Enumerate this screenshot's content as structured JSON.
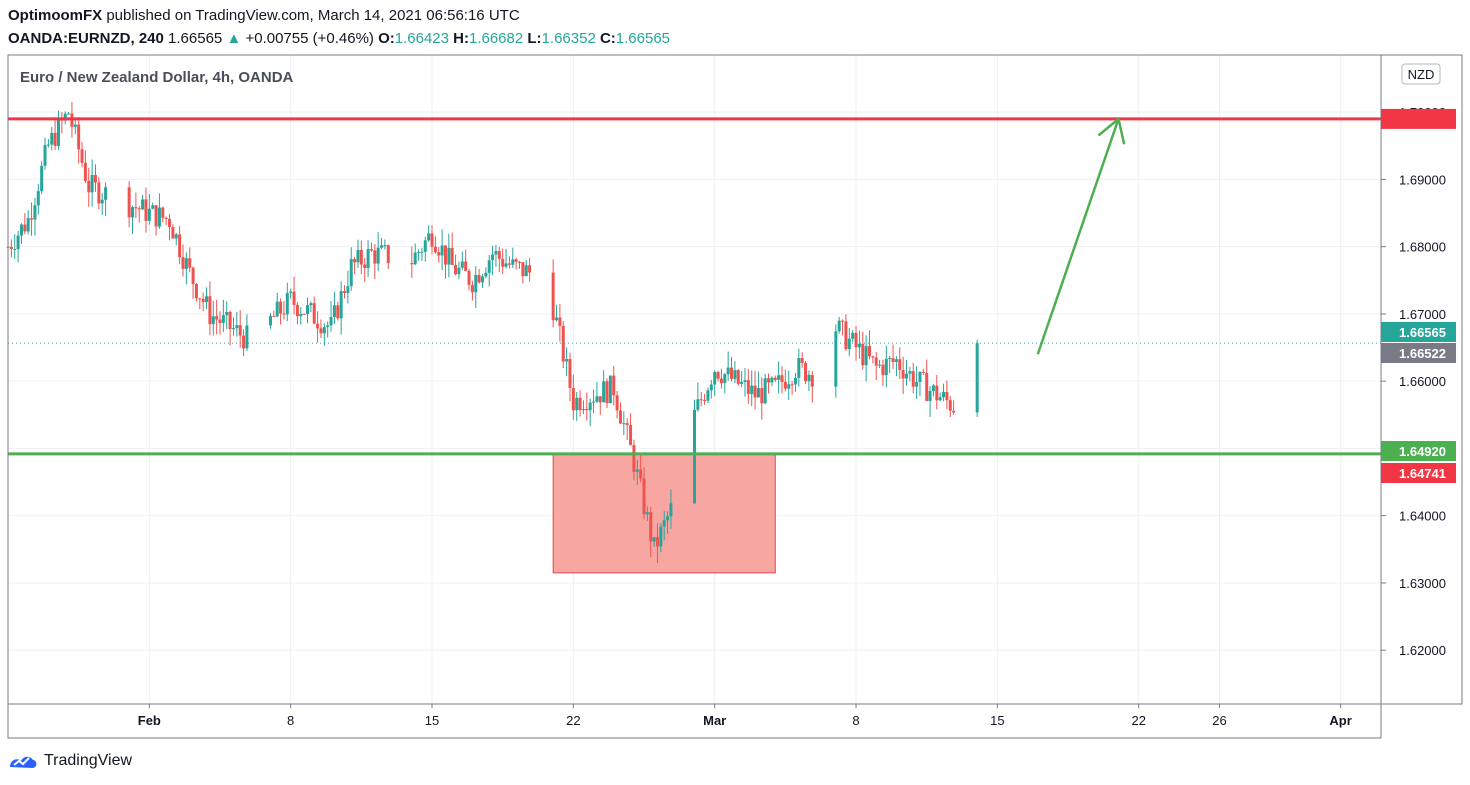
{
  "header": {
    "author": "OptimoomFX",
    "published": "published on TradingView.com, March 14, 2021 06:56:16 UTC",
    "symbol": "OANDA:EURNZD, 240",
    "last": "1.66565",
    "change": "+0.00755 (+0.46%)",
    "o_label": "O:",
    "o": "1.66423",
    "h_label": "H:",
    "h": "1.66682",
    "l_label": "L:",
    "l": "1.66352",
    "c_label": "C:",
    "c": "1.66565"
  },
  "chart_title": "Euro / New Zealand Dollar, 4h, OANDA",
  "currency_badge": "NZD",
  "footer": {
    "brand": "TradingView"
  },
  "colors": {
    "up": "#26a69a",
    "down": "#ef5350",
    "resistance": "#f23645",
    "support": "#4caf50",
    "zone_fill": "#f7a6a2",
    "zone_stroke": "#e04848",
    "arrow": "#4caf50",
    "grid": "#eef0f3"
  },
  "chart_data": {
    "type": "candlestick",
    "title": "Euro / New Zealand Dollar, 4h, OANDA",
    "ylim": [
      1.612,
      1.7085
    ],
    "y_ticks": [
      "1.62000",
      "1.63000",
      "1.64000",
      "1.65000",
      "1.66000",
      "1.67000",
      "1.68000",
      "1.69000",
      "1.70000"
    ],
    "x_range": [
      "2021-01-25",
      "2021-04-03"
    ],
    "x_ticks": [
      {
        "date": "2021-02-01",
        "label": "Feb",
        "bold": true
      },
      {
        "date": "2021-02-08",
        "label": "8",
        "bold": false
      },
      {
        "date": "2021-02-15",
        "label": "15",
        "bold": false
      },
      {
        "date": "2021-02-22",
        "label": "22",
        "bold": false
      },
      {
        "date": "2021-03-01",
        "label": "Mar",
        "bold": true
      },
      {
        "date": "2021-03-08",
        "label": "8",
        "bold": false
      },
      {
        "date": "2021-03-15",
        "label": "15",
        "bold": false
      },
      {
        "date": "2021-03-22",
        "label": "22",
        "bold": false
      },
      {
        "date": "2021-03-26",
        "label": "26",
        "bold": false
      },
      {
        "date": "2021-04-01",
        "label": "Apr",
        "bold": true
      }
    ],
    "daily_path": [
      {
        "date": "2021-01-25",
        "price": 1.68
      },
      {
        "date": "2021-01-26",
        "price": 1.684
      },
      {
        "date": "2021-01-27",
        "price": 1.695
      },
      {
        "date": "2021-01-28",
        "price": 1.7
      },
      {
        "date": "2021-01-29",
        "price": 1.689
      },
      {
        "date": "2021-02-01",
        "price": 1.685
      },
      {
        "date": "2021-02-02",
        "price": 1.684
      },
      {
        "date": "2021-02-03",
        "price": 1.676
      },
      {
        "date": "2021-02-04",
        "price": 1.67
      },
      {
        "date": "2021-02-05",
        "price": 1.668
      },
      {
        "date": "2021-02-06",
        "price": 1.666
      },
      {
        "date": "2021-02-08",
        "price": 1.672
      },
      {
        "date": "2021-02-09",
        "price": 1.67
      },
      {
        "date": "2021-02-10",
        "price": 1.668
      },
      {
        "date": "2021-02-11",
        "price": 1.677
      },
      {
        "date": "2021-02-12",
        "price": 1.679
      },
      {
        "date": "2021-02-14",
        "price": 1.678
      },
      {
        "date": "2021-02-15",
        "price": 1.682
      },
      {
        "date": "2021-02-16",
        "price": 1.677
      },
      {
        "date": "2021-02-17",
        "price": 1.675
      },
      {
        "date": "2021-02-18",
        "price": 1.679
      },
      {
        "date": "2021-02-19",
        "price": 1.677
      },
      {
        "date": "2021-02-20",
        "price": 1.676
      },
      {
        "date": "2021-02-21",
        "price": 1.671
      },
      {
        "date": "2021-02-22",
        "price": 1.657
      },
      {
        "date": "2021-02-23",
        "price": 1.658
      },
      {
        "date": "2021-02-24",
        "price": 1.659
      },
      {
        "date": "2021-02-25",
        "price": 1.648
      },
      {
        "date": "2021-02-26",
        "price": 1.635
      },
      {
        "date": "2021-02-27",
        "price": 1.642
      },
      {
        "date": "2021-02-28",
        "price": 1.655
      },
      {
        "date": "2021-03-01",
        "price": 1.662
      },
      {
        "date": "2021-03-02",
        "price": 1.66
      },
      {
        "date": "2021-03-03",
        "price": 1.658
      },
      {
        "date": "2021-03-04",
        "price": 1.659
      },
      {
        "date": "2021-03-05",
        "price": 1.662
      },
      {
        "date": "2021-03-06",
        "price": 1.661
      },
      {
        "date": "2021-03-07",
        "price": 1.668
      },
      {
        "date": "2021-03-08",
        "price": 1.665
      },
      {
        "date": "2021-03-09",
        "price": 1.662
      },
      {
        "date": "2021-03-10",
        "price": 1.663
      },
      {
        "date": "2021-03-11",
        "price": 1.66
      },
      {
        "date": "2021-03-12",
        "price": 1.658
      },
      {
        "date": "2021-03-13",
        "price": 1.656
      },
      {
        "date": "2021-03-14",
        "price": 1.6656
      }
    ],
    "last_close": 1.66565,
    "resistance": 1.699,
    "support": 1.6492,
    "demand_zone": {
      "start": "2021-02-21",
      "end": "2021-03-04",
      "top": 1.6492,
      "bottom": 1.6315
    },
    "projection_arrow": {
      "from_date": "2021-03-17",
      "from_price": 1.664,
      "to_date": "2021-03-21",
      "to_price": 1.699
    },
    "price_labels": [
      {
        "text": "1.66565",
        "price": 1.66565,
        "role": "last-price"
      },
      {
        "text": "1.66522",
        "price": 1.66522,
        "role": "prev-close"
      },
      {
        "text": "1.64920",
        "price": 1.6492,
        "role": "support"
      },
      {
        "text": "1.64741",
        "price": 1.64741,
        "role": "zone-level"
      }
    ]
  }
}
